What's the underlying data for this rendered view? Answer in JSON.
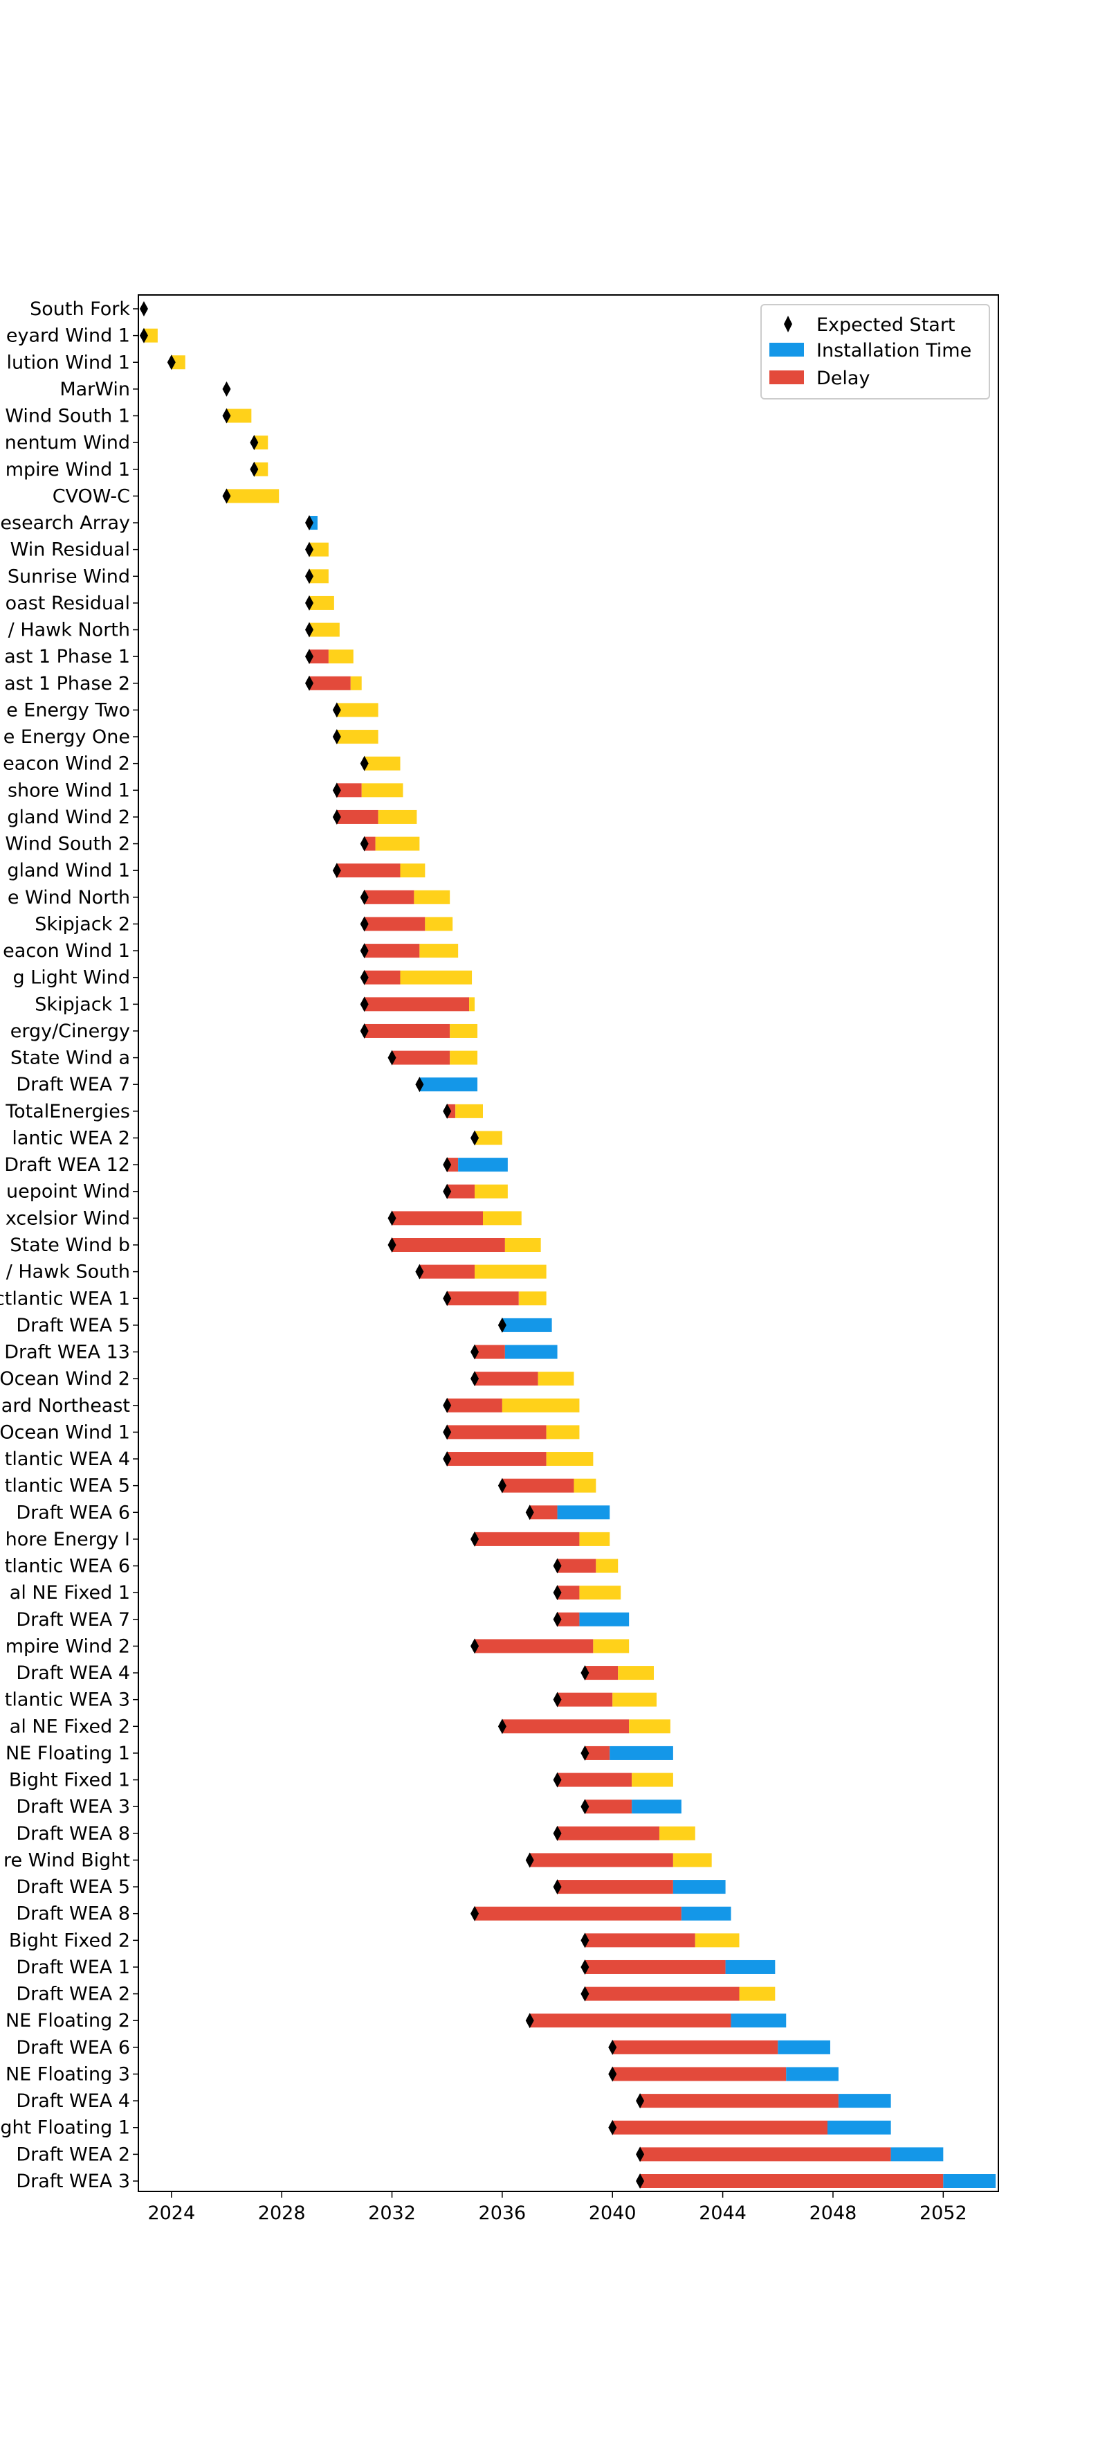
{
  "chart_data": {
    "type": "bar",
    "orientation": "horizontal",
    "stacked": true,
    "xlim": [
      2022.8,
      2054.0
    ],
    "xticks": [
      2024,
      2028,
      2032,
      2036,
      2040,
      2044,
      2048,
      2052
    ],
    "grid": false,
    "legend_position": "top-right",
    "legend": [
      {
        "label": "Expected Start",
        "key": "expected_start"
      },
      {
        "label": "Installation Time",
        "key": "installation_time"
      },
      {
        "label": "Delay",
        "key": "delay"
      }
    ],
    "colors": {
      "delay": "#e34a3b",
      "installation": "#1497e8",
      "extra": "#ffd11a",
      "marker": "#000000"
    },
    "projects": [
      {
        "label": "South Fork",
        "start": 2023.0,
        "delay": 0.0,
        "install": 0.0,
        "extra": 0.0
      },
      {
        "label": "eyard Wind 1",
        "start": 2023.0,
        "delay": 0.0,
        "install": 0.0,
        "extra": 0.5
      },
      {
        "label": "lution Wind 1",
        "start": 2024.0,
        "delay": 0.0,
        "install": 0.0,
        "extra": 0.5
      },
      {
        "label": "MarWin",
        "start": 2026.0,
        "delay": 0.0,
        "install": 0.0,
        "extra": 0.0
      },
      {
        "label": "Wind South 1",
        "start": 2026.0,
        "delay": 0.0,
        "install": 0.0,
        "extra": 0.9
      },
      {
        "label": "nentum Wind",
        "start": 2027.0,
        "delay": 0.0,
        "install": 0.0,
        "extra": 0.5
      },
      {
        "label": "mpire Wind 1",
        "start": 2027.0,
        "delay": 0.0,
        "install": 0.0,
        "extra": 0.5
      },
      {
        "label": "CVOW-C",
        "start": 2026.0,
        "delay": 0.0,
        "install": 0.0,
        "extra": 1.9
      },
      {
        "label": "esearch Array",
        "start": 2029.0,
        "delay": 0.0,
        "install": 0.3,
        "extra": 0.0
      },
      {
        "label": "Win Residual",
        "start": 2029.0,
        "delay": 0.0,
        "install": 0.0,
        "extra": 0.7
      },
      {
        "label": "Sunrise Wind",
        "start": 2029.0,
        "delay": 0.0,
        "install": 0.0,
        "extra": 0.7
      },
      {
        "label": "oast Residual",
        "start": 2029.0,
        "delay": 0.0,
        "install": 0.0,
        "extra": 0.9
      },
      {
        "label": "/ Hawk North",
        "start": 2029.0,
        "delay": 0.0,
        "install": 0.0,
        "extra": 1.1
      },
      {
        "label": "ast 1 Phase 1",
        "start": 2029.0,
        "delay": 0.7,
        "install": 0.0,
        "extra": 0.9
      },
      {
        "label": "ast 1 Phase 2",
        "start": 2029.0,
        "delay": 1.5,
        "install": 0.0,
        "extra": 0.4
      },
      {
        "label": "e Energy Two",
        "start": 2030.0,
        "delay": 0.0,
        "install": 0.0,
        "extra": 1.5
      },
      {
        "label": "e Energy One",
        "start": 2030.0,
        "delay": 0.0,
        "install": 0.0,
        "extra": 1.5
      },
      {
        "label": "eacon Wind 2",
        "start": 2031.0,
        "delay": 0.0,
        "install": 0.0,
        "extra": 1.3
      },
      {
        "label": "shore Wind 1",
        "start": 2030.0,
        "delay": 0.9,
        "install": 0.0,
        "extra": 1.5
      },
      {
        "label": "gland Wind 2",
        "start": 2030.0,
        "delay": 1.5,
        "install": 0.0,
        "extra": 1.4
      },
      {
        "label": "Wind South 2",
        "start": 2031.0,
        "delay": 0.4,
        "install": 0.0,
        "extra": 1.6
      },
      {
        "label": "gland Wind 1",
        "start": 2030.0,
        "delay": 2.3,
        "install": 0.0,
        "extra": 0.9
      },
      {
        "label": "e Wind North",
        "start": 2031.0,
        "delay": 1.8,
        "install": 0.0,
        "extra": 1.3
      },
      {
        "label": "Skipjack 2",
        "start": 2031.0,
        "delay": 2.2,
        "install": 0.0,
        "extra": 1.0
      },
      {
        "label": "eacon Wind 1",
        "start": 2031.0,
        "delay": 2.0,
        "install": 0.0,
        "extra": 1.4
      },
      {
        "label": "g Light Wind",
        "start": 2031.0,
        "delay": 1.3,
        "install": 0.0,
        "extra": 2.6
      },
      {
        "label": "Skipjack 1",
        "start": 2031.0,
        "delay": 3.8,
        "install": 0.0,
        "extra": 0.2
      },
      {
        "label": "ergy/Cinergy",
        "start": 2031.0,
        "delay": 3.1,
        "install": 0.0,
        "extra": 1.0
      },
      {
        "label": "State Wind a",
        "start": 2032.0,
        "delay": 2.1,
        "install": 0.0,
        "extra": 1.0
      },
      {
        "label": "Draft WEA 7",
        "start": 2033.0,
        "delay": 0.0,
        "install": 2.1,
        "extra": 0.0
      },
      {
        "label": "TotalEnergies",
        "start": 2034.0,
        "delay": 0.3,
        "install": 0.0,
        "extra": 1.0
      },
      {
        "label": "lantic WEA  2",
        "start": 2035.0,
        "delay": 0.0,
        "install": 0.0,
        "extra": 1.0
      },
      {
        "label": "Draft WEA 12",
        "start": 2034.0,
        "delay": 0.4,
        "install": 1.8,
        "extra": 0.0
      },
      {
        "label": "uepoint Wind",
        "start": 2034.0,
        "delay": 1.0,
        "install": 0.0,
        "extra": 1.2
      },
      {
        "label": "xcelsior Wind",
        "start": 2032.0,
        "delay": 3.3,
        "install": 0.0,
        "extra": 1.4
      },
      {
        "label": "State Wind b",
        "start": 2032.0,
        "delay": 4.1,
        "install": 0.0,
        "extra": 1.3
      },
      {
        "label": "/ Hawk South",
        "start": 2033.0,
        "delay": 2.0,
        "install": 0.0,
        "extra": 2.6
      },
      {
        "label": "ctlantic WEA 1",
        "start": 2034.0,
        "delay": 2.6,
        "install": 0.0,
        "extra": 1.0
      },
      {
        "label": "Draft WEA 5",
        "start": 2036.0,
        "delay": 0.0,
        "install": 1.8,
        "extra": 0.0
      },
      {
        "label": "Draft WEA 13",
        "start": 2035.0,
        "delay": 1.1,
        "install": 1.9,
        "extra": 0.0
      },
      {
        "label": "Ocean Wind 2",
        "start": 2035.0,
        "delay": 2.3,
        "install": 0.0,
        "extra": 1.3
      },
      {
        "label": "ard Northeast",
        "start": 2034.0,
        "delay": 2.0,
        "install": 0.0,
        "extra": 2.8
      },
      {
        "label": "Ocean Wind 1",
        "start": 2034.0,
        "delay": 3.6,
        "install": 0.0,
        "extra": 1.2
      },
      {
        "label": "tlantic WEA 4",
        "start": 2034.0,
        "delay": 3.6,
        "install": 0.0,
        "extra": 1.7
      },
      {
        "label": "tlantic WEA 5",
        "start": 2036.0,
        "delay": 2.6,
        "install": 0.0,
        "extra": 0.8
      },
      {
        "label": "Draft WEA 6",
        "start": 2037.0,
        "delay": 1.0,
        "install": 1.9,
        "extra": 0.0
      },
      {
        "label": "hore Energy I",
        "start": 2035.0,
        "delay": 3.8,
        "install": 0.0,
        "extra": 1.1
      },
      {
        "label": "tlantic WEA 6",
        "start": 2038.0,
        "delay": 1.4,
        "install": 0.0,
        "extra": 0.8
      },
      {
        "label": "al NE Fixed 1",
        "start": 2038.0,
        "delay": 0.8,
        "install": 0.0,
        "extra": 1.5
      },
      {
        "label": "Draft WEA 7",
        "start": 2038.0,
        "delay": 0.8,
        "install": 1.8,
        "extra": 0.0
      },
      {
        "label": "mpire Wind 2",
        "start": 2035.0,
        "delay": 4.3,
        "install": 0.0,
        "extra": 1.3
      },
      {
        "label": "Draft WEA 4",
        "start": 2039.0,
        "delay": 1.2,
        "install": 0.0,
        "extra": 1.3
      },
      {
        "label": "tlantic WEA 3",
        "start": 2038.0,
        "delay": 2.0,
        "install": 0.0,
        "extra": 1.6
      },
      {
        "label": "al NE Fixed 2",
        "start": 2036.0,
        "delay": 4.6,
        "install": 0.0,
        "extra": 1.5
      },
      {
        "label": "NE Floating 1",
        "start": 2039.0,
        "delay": 0.9,
        "install": 2.3,
        "extra": 0.0
      },
      {
        "label": "Bight Fixed 1",
        "start": 2038.0,
        "delay": 2.7,
        "install": 0.0,
        "extra": 1.5
      },
      {
        "label": "Draft WEA 3",
        "start": 2039.0,
        "delay": 1.7,
        "install": 1.8,
        "extra": 0.0
      },
      {
        "label": "Draft WEA 8",
        "start": 2038.0,
        "delay": 3.7,
        "install": 0.0,
        "extra": 1.3
      },
      {
        "label": "re Wind Bight",
        "start": 2037.0,
        "delay": 5.2,
        "install": 0.0,
        "extra": 1.4
      },
      {
        "label": "Draft WEA 5",
        "start": 2038.0,
        "delay": 4.2,
        "install": 1.9,
        "extra": 0.0
      },
      {
        "label": "Draft WEA 8",
        "start": 2035.0,
        "delay": 7.5,
        "install": 1.8,
        "extra": 0.0
      },
      {
        "label": "Bight Fixed 2",
        "start": 2039.0,
        "delay": 4.0,
        "install": 0.0,
        "extra": 1.6
      },
      {
        "label": "Draft WEA 1",
        "start": 2039.0,
        "delay": 5.1,
        "install": 1.8,
        "extra": 0.0
      },
      {
        "label": "Draft WEA 2",
        "start": 2039.0,
        "delay": 5.6,
        "install": 0.0,
        "extra": 1.3
      },
      {
        "label": "NE Floating 2",
        "start": 2037.0,
        "delay": 7.3,
        "install": 2.0,
        "extra": 0.0
      },
      {
        "label": "Draft WEA 6",
        "start": 2040.0,
        "delay": 6.0,
        "install": 1.9,
        "extra": 0.0
      },
      {
        "label": "NE Floating 3",
        "start": 2040.0,
        "delay": 6.3,
        "install": 1.9,
        "extra": 0.0
      },
      {
        "label": "Draft WEA 4",
        "start": 2041.0,
        "delay": 7.2,
        "install": 1.9,
        "extra": 0.0
      },
      {
        "label": "ght Floating 1",
        "start": 2040.0,
        "delay": 7.8,
        "install": 2.3,
        "extra": 0.0
      },
      {
        "label": "Draft WEA 2",
        "start": 2041.0,
        "delay": 9.1,
        "install": 1.9,
        "extra": 0.0
      },
      {
        "label": "Draft WEA 3",
        "start": 2041.0,
        "delay": 11.0,
        "install": 1.9,
        "extra": 0.0
      }
    ]
  }
}
